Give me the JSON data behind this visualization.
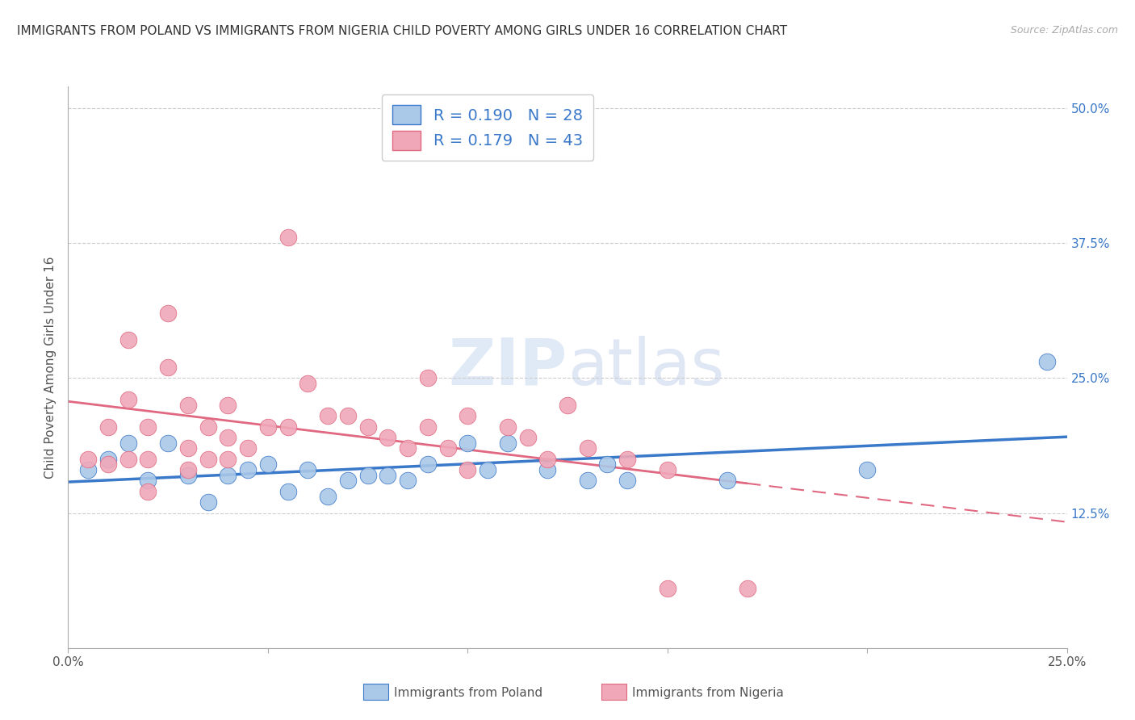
{
  "title": "IMMIGRANTS FROM POLAND VS IMMIGRANTS FROM NIGERIA CHILD POVERTY AMONG GIRLS UNDER 16 CORRELATION CHART",
  "source": "Source: ZipAtlas.com",
  "ylabel": "Child Poverty Among Girls Under 16",
  "watermark": "ZIPatlas",
  "xlim": [
    0.0,
    0.25
  ],
  "ylim": [
    0.0,
    0.52
  ],
  "yticks_right": [
    0.0,
    0.125,
    0.25,
    0.375,
    0.5
  ],
  "ytick_labels_right": [
    "",
    "12.5%",
    "25.0%",
    "37.5%",
    "50.0%"
  ],
  "poland_color": "#aac8e8",
  "nigeria_color": "#f0a8b8",
  "poland_line_color": "#3a78c9",
  "nigeria_line_color": "#e06880",
  "background_color": "#ffffff",
  "grid_color": "#cccccc",
  "title_fontsize": 11,
  "axis_label_fontsize": 11,
  "tick_fontsize": 11,
  "legend_fontsize": 14,
  "poland_scatter_x": [
    0.005,
    0.01,
    0.015,
    0.02,
    0.025,
    0.03,
    0.035,
    0.04,
    0.045,
    0.05,
    0.055,
    0.06,
    0.065,
    0.07,
    0.075,
    0.08,
    0.085,
    0.09,
    0.1,
    0.105,
    0.11,
    0.12,
    0.13,
    0.135,
    0.14,
    0.165,
    0.2,
    0.245
  ],
  "poland_scatter_y": [
    0.165,
    0.175,
    0.19,
    0.155,
    0.19,
    0.16,
    0.135,
    0.16,
    0.165,
    0.17,
    0.145,
    0.165,
    0.14,
    0.155,
    0.16,
    0.16,
    0.155,
    0.17,
    0.19,
    0.165,
    0.19,
    0.165,
    0.155,
    0.17,
    0.155,
    0.155,
    0.165,
    0.265
  ],
  "nigeria_scatter_x": [
    0.005,
    0.01,
    0.01,
    0.015,
    0.015,
    0.015,
    0.02,
    0.02,
    0.02,
    0.025,
    0.025,
    0.03,
    0.03,
    0.03,
    0.035,
    0.035,
    0.04,
    0.04,
    0.04,
    0.045,
    0.05,
    0.055,
    0.055,
    0.06,
    0.065,
    0.07,
    0.075,
    0.08,
    0.085,
    0.09,
    0.09,
    0.095,
    0.1,
    0.1,
    0.11,
    0.115,
    0.12,
    0.125,
    0.13,
    0.14,
    0.15,
    0.15,
    0.17
  ],
  "nigeria_scatter_y": [
    0.175,
    0.17,
    0.205,
    0.175,
    0.23,
    0.285,
    0.145,
    0.175,
    0.205,
    0.26,
    0.31,
    0.165,
    0.185,
    0.225,
    0.175,
    0.205,
    0.175,
    0.195,
    0.225,
    0.185,
    0.205,
    0.38,
    0.205,
    0.245,
    0.215,
    0.215,
    0.205,
    0.195,
    0.185,
    0.205,
    0.25,
    0.185,
    0.165,
    0.215,
    0.205,
    0.195,
    0.175,
    0.225,
    0.185,
    0.175,
    0.055,
    0.165,
    0.055
  ],
  "poland_lowery": 0.125,
  "poland_uppery": 0.2,
  "nigeria_lowery": 0.16,
  "nigeria_uppery": 0.31,
  "nigeria_line_xmax": 0.175
}
